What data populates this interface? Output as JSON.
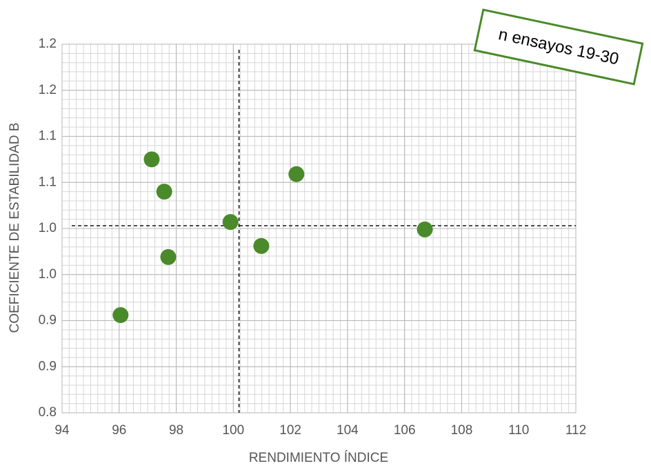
{
  "chart_data": {
    "type": "scatter",
    "annotation": "n ensayos 19-30",
    "x_label": "RENDIMIENTO ÍNDICE",
    "y_label": "COEFICIENTE DE ESTABILIDAD B",
    "x": [
      97.14,
      97.58,
      97.72,
      96.05,
      99.9,
      100.98,
      102.21,
      106.71
    ],
    "series": [
      {
        "color": "#4a8a2a",
        "values": [
          1.075,
          1.04,
          0.969,
          0.906,
          1.007,
          0.981,
          1.059,
          0.999
        ]
      }
    ],
    "reference_lines": {
      "x": 100.2,
      "y": 1.003
    },
    "xlim": [
      94,
      112
    ],
    "xticks": [
      94,
      96,
      98,
      100,
      102,
      104,
      106,
      108,
      110,
      112
    ],
    "ylim": [
      0.8,
      1.2
    ],
    "yticks": [
      0.8,
      {
        "value": 0.85,
        "label": "0.9"
      },
      {
        "value": 0.9,
        "label": "0.9"
      },
      {
        "value": 0.95,
        "label": "1.0"
      },
      {
        "value": 1,
        "label": "1.0"
      },
      {
        "value": 1.05,
        "label": "1.1"
      },
      {
        "value": 1.1,
        "label": "1.1"
      },
      {
        "value": 1.15,
        "label": "1.2"
      },
      1.2
    ],
    "grid": true,
    "annotation_color": "#4a8a2a"
  }
}
